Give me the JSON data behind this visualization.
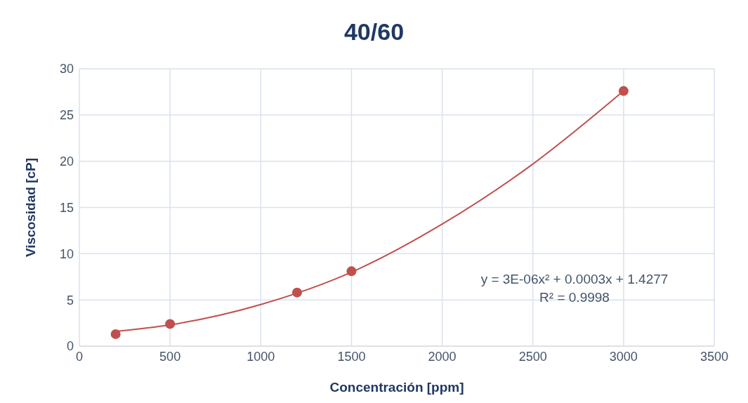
{
  "chart_data": {
    "type": "scatter",
    "title": "40/60",
    "xlabel": "Concentración [ppm]",
    "ylabel": "Viscosidad [cP]",
    "xlim": [
      0,
      3500
    ],
    "xticks": [
      0,
      500,
      1000,
      1500,
      2000,
      2500,
      3000,
      3500
    ],
    "ylim": [
      0,
      30
    ],
    "yticks": [
      0,
      5,
      10,
      15,
      20,
      25,
      30
    ],
    "grid": true,
    "legend": false,
    "series": [
      {
        "type": "line",
        "color": "#c0504d",
        "marker": "none",
        "x": [
          200,
          500,
          1000,
          1500,
          2000,
          2500,
          3000
        ],
        "values": [
          1.6,
          2.3,
          4.5,
          8.0,
          13.2,
          19.7,
          27.6
        ]
      },
      {
        "color": "#c0504d",
        "marker": "circle",
        "x": [
          200,
          500,
          1200,
          1500,
          3000
        ],
        "values": [
          1.3,
          2.4,
          5.8,
          8.1,
          27.6
        ]
      }
    ],
    "annotations": [
      "y = 3E-06x² + 0.0003x + 1.4277",
      "R² = 0.9998"
    ]
  }
}
